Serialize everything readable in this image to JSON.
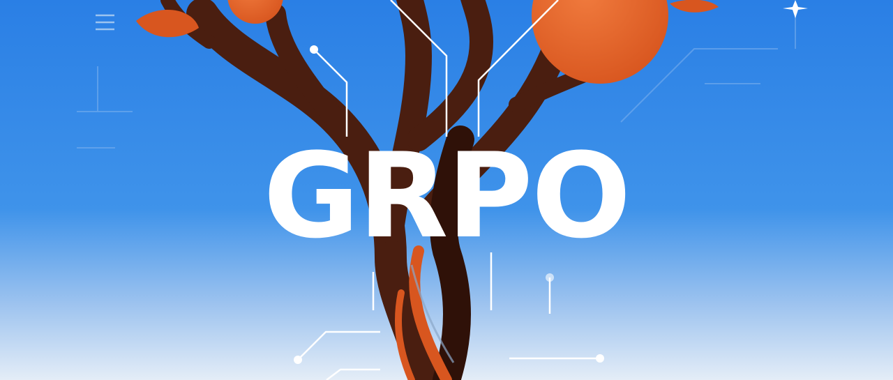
{
  "title": "GRPO",
  "colors": {
    "sky_top": "#2a7fe5",
    "sky_bottom": "#dfe9f5",
    "trunk": "#4a1e10",
    "trunk_shadow": "#2f1108",
    "fruit": "#e0622a",
    "fruit_highlight": "#f07a3d",
    "circuit_line": "#ffffff",
    "title_text": "#ffffff"
  },
  "icons": [
    "sparkle-icon",
    "menu-lines-icon"
  ]
}
